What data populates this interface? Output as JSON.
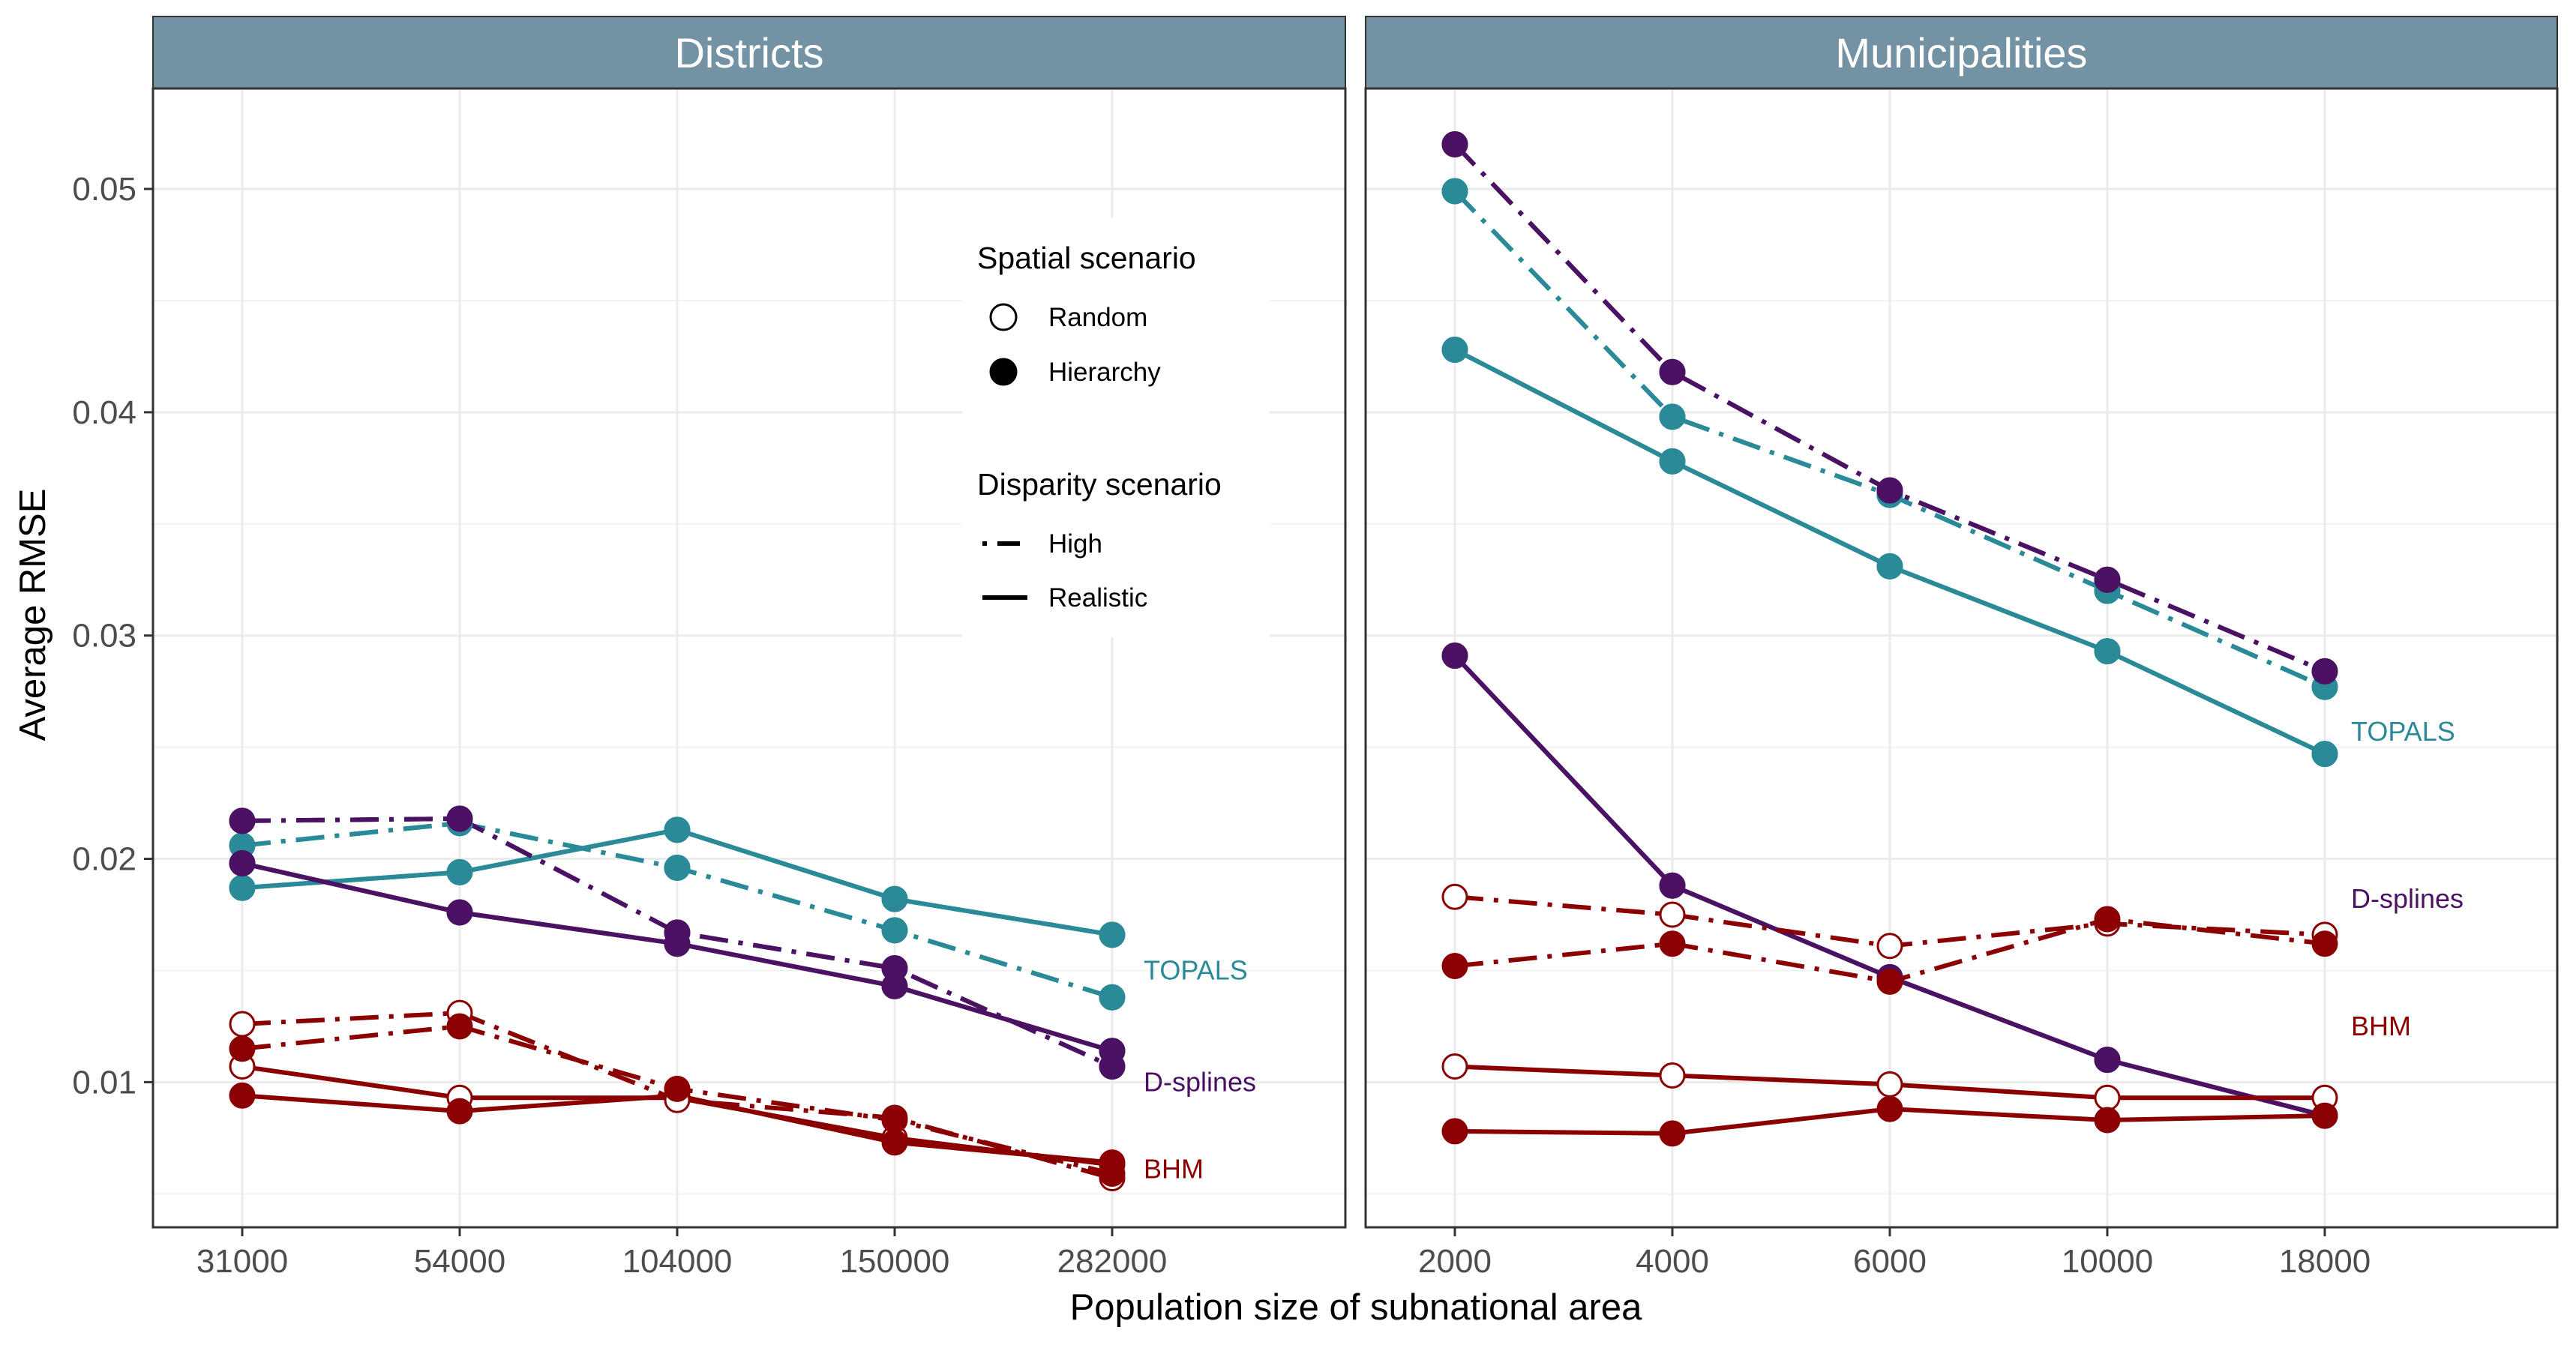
{
  "chart_data": {
    "type": "line",
    "xlabel": "Population size of subnational area",
    "ylabel": "Average RMSE",
    "ylim": [
      0.0035,
      0.0545
    ],
    "yticks": [
      {
        "value": 0.01,
        "label": "0.01"
      },
      {
        "value": 0.02,
        "label": "0.02"
      },
      {
        "value": 0.03,
        "label": "0.03"
      },
      {
        "value": 0.04,
        "label": "0.04"
      },
      {
        "value": 0.05,
        "label": "0.05"
      }
    ],
    "grid": true,
    "colors": {
      "TOPALS": "#2b8a98",
      "D-splines": "#4b1163",
      "BHM": "#8b0000",
      "strip": "#7393a5"
    },
    "legend": {
      "position": "inside-top-left-panel-right",
      "spatial": {
        "title": "Spatial scenario",
        "items": [
          {
            "label": "Random",
            "marker": "open-circle"
          },
          {
            "label": "Hierarchy",
            "marker": "filled-circle"
          }
        ]
      },
      "disparity": {
        "title": "Disparity scenario",
        "items": [
          {
            "label": "High",
            "linetype": "dotdash"
          },
          {
            "label": "Realistic",
            "linetype": "solid"
          }
        ]
      }
    },
    "panels": [
      {
        "strip": "Districts",
        "categories": [
          "31000",
          "54000",
          "104000",
          "150000",
          "282000"
        ],
        "method_labels": [
          {
            "text": "TOPALS",
            "method": "TOPALS",
            "y": 0.015
          },
          {
            "text": "D-splines",
            "method": "D-splines",
            "y": 0.01
          },
          {
            "text": "BHM",
            "method": "BHM",
            "y": 0.0061
          }
        ],
        "series": [
          {
            "method": "TOPALS",
            "disparity": "Realistic",
            "spatial": "Random",
            "values": [
              0.0187,
              0.0194,
              0.0213,
              0.0182,
              0.0166
            ]
          },
          {
            "method": "TOPALS",
            "disparity": "Realistic",
            "spatial": "Hierarchy",
            "values": [
              0.0187,
              0.0194,
              0.0213,
              0.0182,
              0.0166
            ]
          },
          {
            "method": "TOPALS",
            "disparity": "High",
            "spatial": "Random",
            "values": [
              0.0206,
              0.0216,
              0.0196,
              0.0168,
              0.0138
            ]
          },
          {
            "method": "TOPALS",
            "disparity": "High",
            "spatial": "Hierarchy",
            "values": [
              0.0206,
              0.0216,
              0.0196,
              0.0168,
              0.0138
            ]
          },
          {
            "method": "D-splines",
            "disparity": "Realistic",
            "spatial": "Random",
            "values": [
              0.0198,
              0.0176,
              0.0162,
              0.0143,
              0.0114
            ]
          },
          {
            "method": "D-splines",
            "disparity": "Realistic",
            "spatial": "Hierarchy",
            "values": [
              0.0198,
              0.0176,
              0.0162,
              0.0143,
              0.0114
            ]
          },
          {
            "method": "D-splines",
            "disparity": "High",
            "spatial": "Random",
            "values": [
              0.0217,
              0.0218,
              0.0167,
              0.0151,
              0.0107
            ]
          },
          {
            "method": "D-splines",
            "disparity": "High",
            "spatial": "Hierarchy",
            "values": [
              0.0217,
              0.0218,
              0.0167,
              0.0151,
              0.0107
            ]
          },
          {
            "method": "BHM",
            "disparity": "Realistic",
            "spatial": "Random",
            "values": [
              0.0107,
              0.0093,
              0.0093,
              0.0075,
              0.0063
            ]
          },
          {
            "method": "BHM",
            "disparity": "Realistic",
            "spatial": "Hierarchy",
            "values": [
              0.0094,
              0.0087,
              0.0094,
              0.0073,
              0.0064
            ]
          },
          {
            "method": "BHM",
            "disparity": "High",
            "spatial": "Random",
            "values": [
              0.0126,
              0.0131,
              0.0092,
              0.0084,
              0.0057
            ]
          },
          {
            "method": "BHM",
            "disparity": "High",
            "spatial": "Hierarchy",
            "values": [
              0.0115,
              0.0125,
              0.0097,
              0.0083,
              0.0059
            ]
          }
        ]
      },
      {
        "strip": "Municipalities",
        "categories": [
          "2000",
          "4000",
          "6000",
          "10000",
          "18000"
        ],
        "method_labels": [
          {
            "text": "TOPALS",
            "method": "TOPALS",
            "y": 0.0257
          },
          {
            "text": "D-splines",
            "method": "D-splines",
            "y": 0.0182
          },
          {
            "text": "BHM",
            "method": "BHM",
            "y": 0.0125
          }
        ],
        "series": [
          {
            "method": "TOPALS",
            "disparity": "Realistic",
            "spatial": "Random",
            "values": [
              0.0428,
              0.0378,
              0.0331,
              0.0293,
              0.0247
            ]
          },
          {
            "method": "TOPALS",
            "disparity": "Realistic",
            "spatial": "Hierarchy",
            "values": [
              0.0428,
              0.0378,
              0.0331,
              0.0293,
              0.0247
            ]
          },
          {
            "method": "TOPALS",
            "disparity": "High",
            "spatial": "Random",
            "values": [
              0.0499,
              0.0398,
              0.0363,
              0.032,
              0.0277
            ]
          },
          {
            "method": "TOPALS",
            "disparity": "High",
            "spatial": "Hierarchy",
            "values": [
              0.0499,
              0.0398,
              0.0363,
              0.032,
              0.0277
            ]
          },
          {
            "method": "D-splines",
            "disparity": "Realistic",
            "spatial": "Random",
            "values": [
              0.0291,
              0.0188,
              0.0147,
              0.011,
              0.0085
            ]
          },
          {
            "method": "D-splines",
            "disparity": "Realistic",
            "spatial": "Hierarchy",
            "values": [
              0.0291,
              0.0188,
              0.0147,
              0.011,
              0.0085
            ]
          },
          {
            "method": "D-splines",
            "disparity": "High",
            "spatial": "Random",
            "values": [
              0.052,
              0.0418,
              0.0365,
              0.0325,
              0.0284
            ]
          },
          {
            "method": "D-splines",
            "disparity": "High",
            "spatial": "Hierarchy",
            "values": [
              0.052,
              0.0418,
              0.0365,
              0.0325,
              0.0284
            ]
          },
          {
            "method": "BHM",
            "disparity": "Realistic",
            "spatial": "Random",
            "values": [
              0.0107,
              0.0103,
              0.0099,
              0.0093,
              0.0093
            ]
          },
          {
            "method": "BHM",
            "disparity": "Realistic",
            "spatial": "Hierarchy",
            "values": [
              0.0078,
              0.0077,
              0.0088,
              0.0083,
              0.0085
            ]
          },
          {
            "method": "BHM",
            "disparity": "High",
            "spatial": "Random",
            "values": [
              0.0183,
              0.0175,
              0.0161,
              0.0171,
              0.0166
            ]
          },
          {
            "method": "BHM",
            "disparity": "High",
            "spatial": "Hierarchy",
            "values": [
              0.0152,
              0.0162,
              0.0145,
              0.0173,
              0.0162
            ]
          }
        ]
      }
    ]
  }
}
